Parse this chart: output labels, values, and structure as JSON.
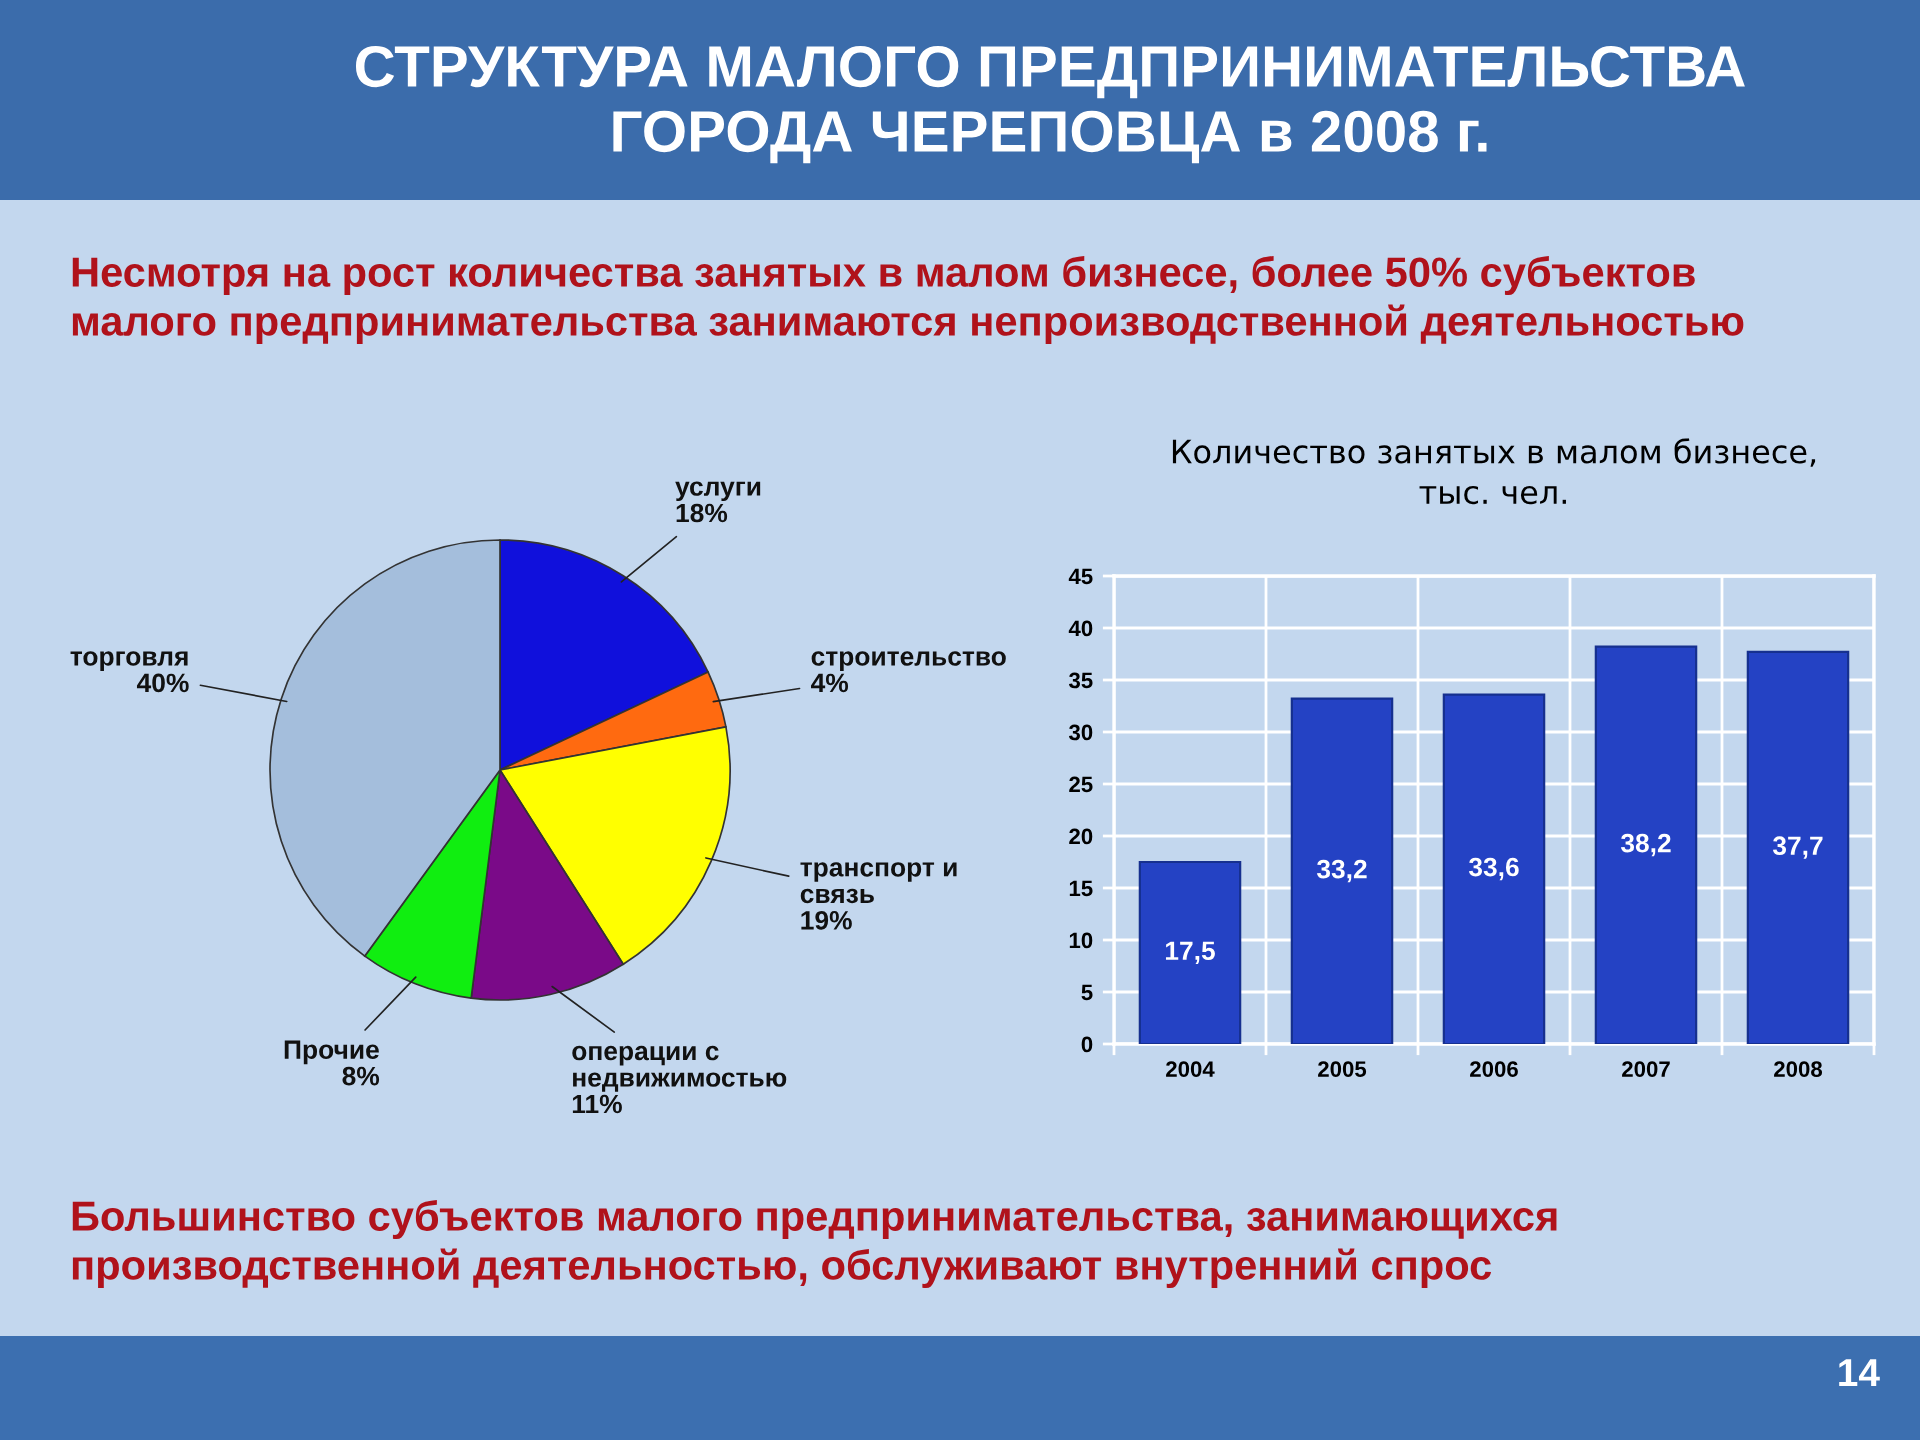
{
  "chart_data": [
    {
      "type": "pie",
      "title": "СТРУКТУРА МАЛОГО ПРЕДПРИНИМАТЕЛЬСТВА\nГОРОДА ЧЕРЕПОВЦА в 2008 г.",
      "subtitle": "Несмотря на рост количества занятых в малом бизнесе, более 50% субъектов\nмалого предпринимательства занимаются непроизводственной деятельностью",
      "categories": [
        "услуги",
        "строительство",
        "транспорт и\nсвязь",
        "операции с\nнедвижимостью",
        "Прочие",
        "торговля"
      ],
      "values": [
        18,
        4,
        19,
        11,
        8,
        40
      ],
      "value_labels": [
        "18%",
        "4%",
        "19%",
        "11%",
        "8%",
        "40%"
      ],
      "colors": [
        "#1010dc",
        "#ff6a10",
        "#ffff00",
        "#7a0a88",
        "#10ee10",
        "#a4bedc"
      ],
      "annotations": [
        "Большинство субъектов малого предпринимательства, занимающихся\nпроизводственной деятельностью, обслуживают внутренний спрос",
        "14"
      ]
    },
    {
      "type": "bar",
      "title": "Количество занятых в малом бизнесе,\nтыс. чел.",
      "categories": [
        "2004",
        "2005",
        "2006",
        "2007",
        "2008"
      ],
      "values": [
        17.5,
        33.2,
        33.6,
        38.2,
        37.7
      ],
      "value_labels": [
        "17,5",
        "33,2",
        "33,6",
        "38,2",
        "37,7"
      ],
      "color": "#2442c4",
      "ylim": [
        0,
        45
      ],
      "yticks": [
        0,
        5,
        10,
        15,
        20,
        25,
        30,
        35,
        40,
        45
      ],
      "grid": true
    }
  ]
}
